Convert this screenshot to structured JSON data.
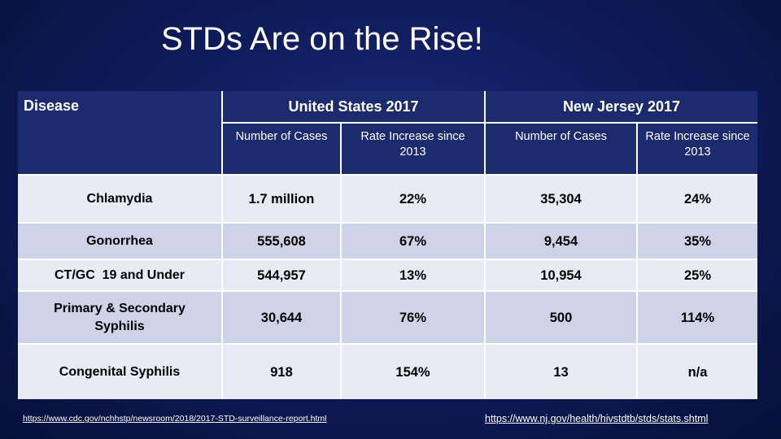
{
  "slide": {
    "title": "STDs Are on the Rise!"
  },
  "table": {
    "header": {
      "disease": "Disease",
      "us_group": "United States 2017",
      "nj_group": "New Jersey 2017",
      "sub": {
        "us_cases": "Number of Cases",
        "us_rate": "Rate Increase since 2013",
        "nj_cases": "Number of Cases",
        "nj_rate": "Rate Increase since 2013"
      }
    },
    "rows": [
      {
        "disease": "Chlamydia",
        "us_cases": "1.7 million",
        "us_rate": "22%",
        "nj_cases": "35,304",
        "nj_rate": "24%"
      },
      {
        "disease": "Gonorrhea",
        "us_cases": "555,608",
        "us_rate": "67%",
        "nj_cases": "9,454",
        "nj_rate": "35%"
      },
      {
        "disease": "CT/GC  19 and Under",
        "us_cases": "544,957",
        "us_rate": "13%",
        "nj_cases": "10,954",
        "nj_rate": "25%"
      },
      {
        "disease": "Primary & Secondary Syphilis",
        "us_cases": "30,644",
        "us_rate": "76%",
        "nj_cases": "500",
        "nj_rate": "114%"
      },
      {
        "disease": "Congenital Syphilis",
        "us_cases": "918",
        "us_rate": "154%",
        "nj_cases": "13",
        "nj_rate": "n/a"
      }
    ]
  },
  "sources": {
    "cdc": "https://www.cdc.gov/nchhstp/newsroom/2018/2017-STD-surveillance-report.html",
    "nj": "https://www.nj.gov/health/hivstdtb/stds/stats.shtml"
  }
}
